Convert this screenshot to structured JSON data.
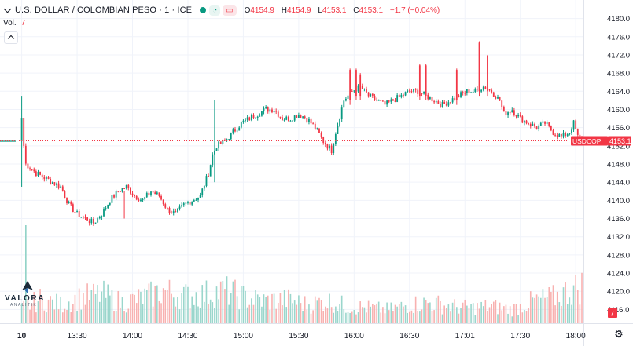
{
  "header": {
    "symbol_title": "U.S. DOLLAR / COLOMBIAN PESO · 1 · ICE",
    "ohlc": [
      {
        "key": "O",
        "value": "4154.9"
      },
      {
        "key": "H",
        "value": "4154.9"
      },
      {
        "key": "L",
        "value": "4153.1"
      },
      {
        "key": "C",
        "value": "4153.1"
      }
    ],
    "change": "−1.7 (−0.04%)",
    "volume_label": "Vol.",
    "volume_value": "7",
    "market_status_color": "#089981"
  },
  "logo": {
    "name": "VALORA",
    "tagline": "ANALITIK"
  },
  "colors": {
    "up": "#089981",
    "down": "#f23645",
    "grid": "#f0f3fa",
    "axis_text": "#131722"
  },
  "chart_data": {
    "type": "candlestick",
    "price_axis": {
      "min": 4114,
      "max": 4182,
      "ticks": [
        "4116.0",
        "4120.0",
        "4124.0",
        "4128.0",
        "4132.0",
        "4136.0",
        "4140.0",
        "4144.0",
        "4148.0",
        "4152.0",
        "4156.0",
        "4160.0",
        "4164.0",
        "4168.0",
        "4172.0",
        "4176.0",
        "4180.0"
      ],
      "tick_values": [
        4116,
        4120,
        4124,
        4128,
        4132,
        4136,
        4140,
        4144,
        4148,
        4152,
        4156,
        4160,
        4164,
        4168,
        4172,
        4176,
        4180
      ]
    },
    "time_axis": {
      "labels": [
        "10",
        "13:30",
        "14:00",
        "14:30",
        "15:00",
        "15:30",
        "16:00",
        "16:30",
        "17:01",
        "17:30",
        "18:00"
      ],
      "label_index": [
        1,
        28,
        55,
        82,
        109,
        136,
        163,
        190,
        217,
        244,
        271
      ]
    },
    "last_price": {
      "symbol": "USDCOP",
      "value": "4153.1",
      "price": 4153.1
    },
    "volume_last": "7",
    "anchors": [
      [
        0,
        4153.0
      ],
      [
        1,
        4158
      ],
      [
        2,
        4152
      ],
      [
        3,
        4148
      ],
      [
        8,
        4146
      ],
      [
        12,
        4145
      ],
      [
        16,
        4144
      ],
      [
        20,
        4143
      ],
      [
        24,
        4139
      ],
      [
        28,
        4137
      ],
      [
        32,
        4136
      ],
      [
        36,
        4135
      ],
      [
        40,
        4137
      ],
      [
        44,
        4140
      ],
      [
        48,
        4142
      ],
      [
        52,
        4143
      ],
      [
        56,
        4141
      ],
      [
        60,
        4140
      ],
      [
        64,
        4142
      ],
      [
        68,
        4141
      ],
      [
        72,
        4138
      ],
      [
        76,
        4137
      ],
      [
        80,
        4139
      ],
      [
        84,
        4140
      ],
      [
        88,
        4141
      ],
      [
        92,
        4146
      ],
      [
        94,
        4150
      ],
      [
        96,
        4152
      ],
      [
        100,
        4153
      ],
      [
        104,
        4155
      ],
      [
        108,
        4157
      ],
      [
        112,
        4158
      ],
      [
        116,
        4159
      ],
      [
        120,
        4160
      ],
      [
        124,
        4160
      ],
      [
        128,
        4158
      ],
      [
        132,
        4158
      ],
      [
        136,
        4159
      ],
      [
        140,
        4158
      ],
      [
        144,
        4156
      ],
      [
        148,
        4153
      ],
      [
        152,
        4151
      ],
      [
        154,
        4155
      ],
      [
        158,
        4162
      ],
      [
        162,
        4164
      ],
      [
        166,
        4165
      ],
      [
        170,
        4163
      ],
      [
        174,
        4162
      ],
      [
        178,
        4161
      ],
      [
        182,
        4162
      ],
      [
        186,
        4163
      ],
      [
        190,
        4164
      ],
      [
        194,
        4164
      ],
      [
        198,
        4163
      ],
      [
        202,
        4162
      ],
      [
        206,
        4161
      ],
      [
        210,
        4162
      ],
      [
        214,
        4163
      ],
      [
        218,
        4164
      ],
      [
        222,
        4164
      ],
      [
        226,
        4165
      ],
      [
        230,
        4164
      ],
      [
        234,
        4162
      ],
      [
        236,
        4159
      ],
      [
        240,
        4160
      ],
      [
        244,
        4158
      ],
      [
        248,
        4157
      ],
      [
        252,
        4156
      ],
      [
        256,
        4157
      ],
      [
        260,
        4155
      ],
      [
        264,
        4154
      ],
      [
        268,
        4155
      ],
      [
        270,
        4157
      ],
      [
        272,
        4154
      ],
      [
        274,
        4153.1
      ]
    ],
    "spikes": [
      {
        "i": 1,
        "high": 4163,
        "low": 4143
      },
      {
        "i": 51,
        "high": 4142,
        "low": 4136
      },
      {
        "i": 95,
        "high": 4162,
        "low": 4144
      },
      {
        "i": 161,
        "high": 4169,
        "low": 4161
      },
      {
        "i": 164,
        "high": 4169,
        "low": 4162
      },
      {
        "i": 166,
        "high": 4168,
        "low": 4162
      },
      {
        "i": 195,
        "high": 4170,
        "low": 4162
      },
      {
        "i": 198,
        "high": 4170,
        "low": 4162
      },
      {
        "i": 213,
        "high": 4169,
        "low": 4161
      },
      {
        "i": 224,
        "high": 4175,
        "low": 4163
      },
      {
        "i": 228,
        "high": 4172,
        "low": 4163
      }
    ],
    "volume_profile": [
      [
        0,
        40
      ],
      [
        10,
        70
      ],
      [
        20,
        55
      ],
      [
        30,
        75
      ],
      [
        40,
        85
      ],
      [
        50,
        60
      ],
      [
        60,
        75
      ],
      [
        70,
        95
      ],
      [
        80,
        80
      ],
      [
        90,
        85
      ],
      [
        100,
        95
      ],
      [
        110,
        75
      ],
      [
        120,
        65
      ],
      [
        130,
        70
      ],
      [
        140,
        55
      ],
      [
        150,
        65
      ],
      [
        160,
        50
      ],
      [
        170,
        45
      ],
      [
        180,
        40
      ],
      [
        190,
        55
      ],
      [
        200,
        60
      ],
      [
        210,
        50
      ],
      [
        220,
        45
      ],
      [
        230,
        50
      ],
      [
        240,
        40
      ],
      [
        250,
        65
      ],
      [
        260,
        75
      ],
      [
        270,
        100
      ],
      [
        274,
        110
      ]
    ]
  }
}
